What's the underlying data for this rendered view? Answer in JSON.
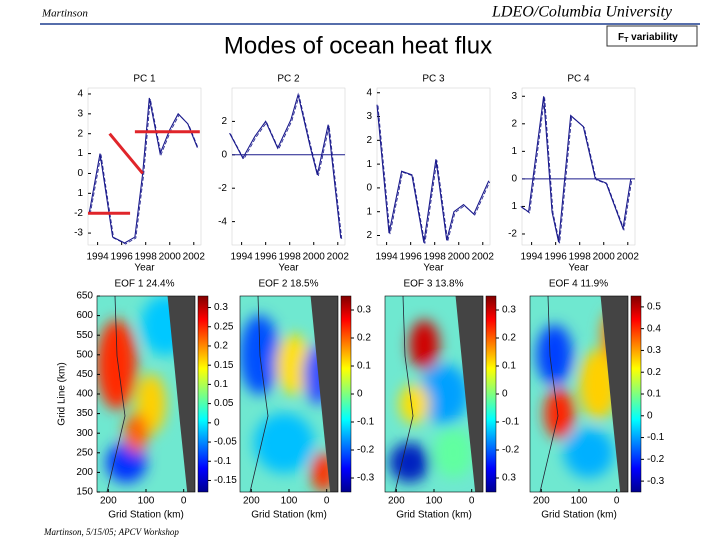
{
  "header": {
    "left": "Martinson",
    "right": "LDEO/Columbia University",
    "title": "Modes of  ocean heat flux",
    "badge": {
      "main": "F",
      "sub": "T",
      "rest": " variability"
    }
  },
  "footer": "Martinson, 5/15/05; APCV Workshop",
  "chart_data": [
    {
      "type": "line",
      "title": "PC 1",
      "xlabel": "Year",
      "caption": "EOF 1 24.4%",
      "xlim": [
        1993.2,
        2002.6
      ],
      "xticks": [
        1994,
        1996,
        1998,
        2000,
        2002
      ],
      "ylim": [
        -3.6,
        4.3
      ],
      "yticks": [
        4,
        3,
        2,
        1,
        0,
        {
          "value": -1,
          "label": "1"
        },
        -2,
        -3
      ],
      "x": [
        1993.3,
        1994.2,
        1995.25,
        1996.25,
        1997.1,
        1997.75,
        1998.3,
        1999.2,
        2000,
        2000.7,
        2001.5,
        2002.3
      ],
      "series": [
        {
          "color": "#1a1a8c",
          "values": [
            -2,
            1,
            -3.2,
            -3.5,
            -3.2,
            0,
            3.8,
            1,
            2.2,
            3,
            2.5,
            1.3
          ]
        }
      ],
      "segments": {
        "color": "#e0252a",
        "x": [
          [
            1993.2,
            1996.7
          ],
          [
            1995,
            1997.75
          ],
          [
            1997.1,
            2002.5
          ]
        ],
        "values": [
          [
            -2,
            -2
          ],
          [
            2,
            0
          ],
          [
            2.1,
            2.1
          ]
        ]
      }
    },
    {
      "type": "line",
      "title": "PC 2",
      "xlabel": "Year",
      "caption": "EOF 2 18.5%",
      "xlim": [
        1993.2,
        2002.6
      ],
      "xticks": [
        1994,
        1996,
        1998,
        2000,
        2002
      ],
      "ylim": [
        -5.4,
        4
      ],
      "yticks": [
        2,
        0,
        -2,
        -4
      ],
      "zero_line": true,
      "x": [
        1993.0,
        1994.1,
        1995.1,
        1996.0,
        1997.0,
        1998.1,
        1998.7,
        1999.7,
        2000.3,
        2001.2,
        2002.25
      ],
      "series": [
        {
          "color": "#1a1a8c",
          "values": [
            1.3,
            -0.2,
            1.1,
            2,
            0.4,
            2.1,
            3.6,
            0.5,
            -1.2,
            1.8,
            -5
          ]
        }
      ]
    },
    {
      "type": "line",
      "title": "PC 3",
      "xlabel": "Year",
      "caption": "EOF 3 13.8%",
      "xlim": [
        1993.2,
        2002.6
      ],
      "xticks": [
        1994,
        1996,
        1998,
        2000,
        2002
      ],
      "ylim": [
        -2.4,
        4.2
      ],
      "yticks": [
        4,
        3,
        2,
        1,
        0,
        {
          "value": -1,
          "label": "1"
        },
        {
          "value": -2,
          "label": "2"
        }
      ],
      "x": [
        1993.2,
        1994.2,
        1995.25,
        1996.1,
        1997.1,
        1998.1,
        1999,
        1999.6,
        2000.4,
        2001.25,
        2002.5
      ],
      "series": [
        {
          "color": "#1a1a8c",
          "values": [
            3.5,
            -1.9,
            0.7,
            0.55,
            -2.3,
            1.2,
            -2.2,
            -1,
            -0.7,
            -1.1,
            0.3
          ]
        }
      ]
    },
    {
      "type": "line",
      "title": "PC 4",
      "xlabel": "Year",
      "caption": "EOF 4 11.9%",
      "xlim": [
        1993.2,
        2002.6
      ],
      "xticks": [
        1994,
        1996,
        1998,
        2000,
        2002
      ],
      "ylim": [
        -2.4,
        3.3
      ],
      "yticks": [
        3,
        2,
        1,
        0,
        {
          "value": -1,
          "label": "1"
        },
        -2
      ],
      "zero_line": true,
      "x": [
        1993.1,
        1993.75,
        1995,
        1995.7,
        1996.25,
        1997.25,
        1998.3,
        1999.3,
        2000.2,
        2001.6,
        2002.25
      ],
      "series": [
        {
          "color": "#1a1a8c",
          "values": [
            -1,
            -1.2,
            3,
            -1.2,
            -2.3,
            2.3,
            1.9,
            0,
            -0.15,
            -1.8,
            0
          ]
        }
      ]
    }
  ],
  "heatmaps": {
    "ylabel": "Grid Line (km)",
    "xlabel": "Grid Station (km)",
    "ylim": [
      150,
      650
    ],
    "yticks": [
      150,
      200,
      250,
      300,
      350,
      400,
      450,
      500,
      550,
      600,
      650
    ],
    "xlim": [
      230,
      -30
    ],
    "xticks": [
      200,
      100,
      0
    ],
    "colorbars": [
      {
        "clim": [
          -0.18,
          0.33
        ],
        "ticks": [
          0.3,
          0.25,
          0.2,
          0.15,
          0.1,
          0.05,
          0,
          -0.05,
          -0.1,
          -0.15
        ]
      },
      {
        "clim": [
          -0.35,
          0.35
        ],
        "ticks": [
          0.3,
          0.2,
          0.1,
          0,
          -0.1,
          -0.2,
          -0.3
        ]
      },
      {
        "clim": [
          -0.35,
          0.35
        ],
        "ticks": [
          0.3,
          0.2,
          0.1,
          0,
          -0.1,
          -0.2,
          {
            "value": -0.3,
            "label": "0.3"
          }
        ]
      },
      {
        "clim": [
          -0.35,
          0.55
        ],
        "ticks": [
          0.5,
          0.4,
          0.3,
          0.2,
          0.1,
          0,
          -0.1,
          -0.2,
          -0.3
        ]
      }
    ]
  }
}
